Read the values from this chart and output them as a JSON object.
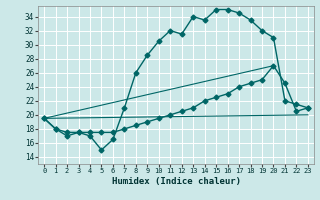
{
  "title": "",
  "xlabel": "Humidex (Indice chaleur)",
  "ylabel": "",
  "bg_color": "#cce8e8",
  "grid_color": "#ffffff",
  "line_color": "#006666",
  "xlim": [
    -0.5,
    23.5
  ],
  "ylim": [
    13.0,
    35.5
  ],
  "yticks": [
    14,
    16,
    18,
    20,
    22,
    24,
    26,
    28,
    30,
    32,
    34
  ],
  "xticks": [
    0,
    1,
    2,
    3,
    4,
    5,
    6,
    7,
    8,
    9,
    10,
    11,
    12,
    13,
    14,
    15,
    16,
    17,
    18,
    19,
    20,
    21,
    22,
    23
  ],
  "curve1_x": [
    0,
    1,
    2,
    3,
    4,
    5,
    6,
    7,
    8,
    9,
    10,
    11,
    12,
    13,
    14,
    15,
    16,
    17,
    18,
    19,
    20,
    21,
    22,
    23
  ],
  "curve1_y": [
    19.5,
    18.0,
    17.5,
    17.5,
    17.0,
    15.0,
    16.5,
    21.0,
    26.0,
    28.5,
    30.5,
    32.0,
    31.5,
    34.0,
    33.5,
    35.0,
    35.0,
    34.5,
    33.5,
    32.0,
    31.0,
    22.0,
    21.5,
    21.0
  ],
  "curve2_x": [
    0,
    1,
    2,
    3,
    4,
    5,
    6,
    7,
    8,
    9,
    10,
    11,
    12,
    13,
    14,
    15,
    16,
    17,
    18,
    19,
    20,
    21,
    22,
    23
  ],
  "curve2_y": [
    19.5,
    18.0,
    17.0,
    17.5,
    17.5,
    17.5,
    17.5,
    18.0,
    18.5,
    19.0,
    19.5,
    20.0,
    20.5,
    21.0,
    22.0,
    22.5,
    23.0,
    24.0,
    24.5,
    25.0,
    27.0,
    24.5,
    20.5,
    21.0
  ],
  "curve3_x": [
    0,
    23
  ],
  "curve3_y": [
    19.5,
    20.0
  ],
  "curve4_x": [
    0,
    20
  ],
  "curve4_y": [
    19.5,
    27.0
  ],
  "marker": "D",
  "marker_size": 2.5,
  "linewidth": 1.0
}
